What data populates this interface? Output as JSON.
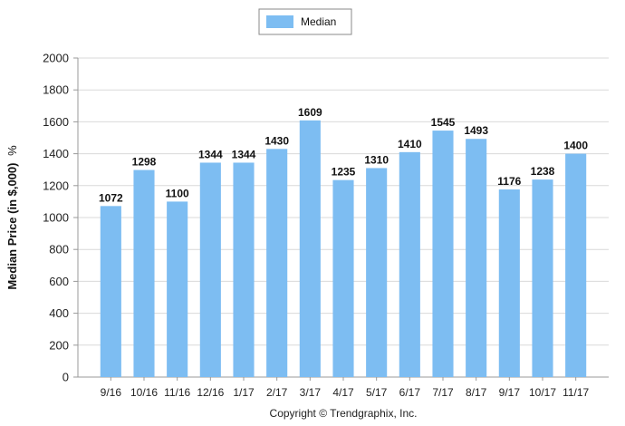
{
  "chart_data": {
    "type": "bar",
    "categories": [
      "9/16",
      "10/16",
      "11/16",
      "12/16",
      "1/17",
      "2/17",
      "3/17",
      "4/17",
      "5/17",
      "6/17",
      "7/17",
      "8/17",
      "9/17",
      "10/17",
      "11/17"
    ],
    "series": [
      {
        "name": "Median",
        "values": [
          1072,
          1298,
          1100,
          1344,
          1344,
          1430,
          1609,
          1235,
          1310,
          1410,
          1545,
          1493,
          1176,
          1238,
          1400
        ],
        "color": "#7dbdf2"
      }
    ],
    "ylabel": "Median Price (in $,000)",
    "ylabel_suffix": "%",
    "ylim": [
      0,
      2000
    ],
    "yticks": [
      0,
      200,
      400,
      600,
      800,
      1000,
      1200,
      1400,
      1600,
      1800,
      2000
    ],
    "grid": true,
    "legend_position": "top-center",
    "data_labels": true
  },
  "footer": {
    "copyright": "Copyright © Trendgraphix, Inc."
  },
  "colors": {
    "bar": "#7dbdf2",
    "grid": "#d9d9d9",
    "axis": "#999999"
  }
}
